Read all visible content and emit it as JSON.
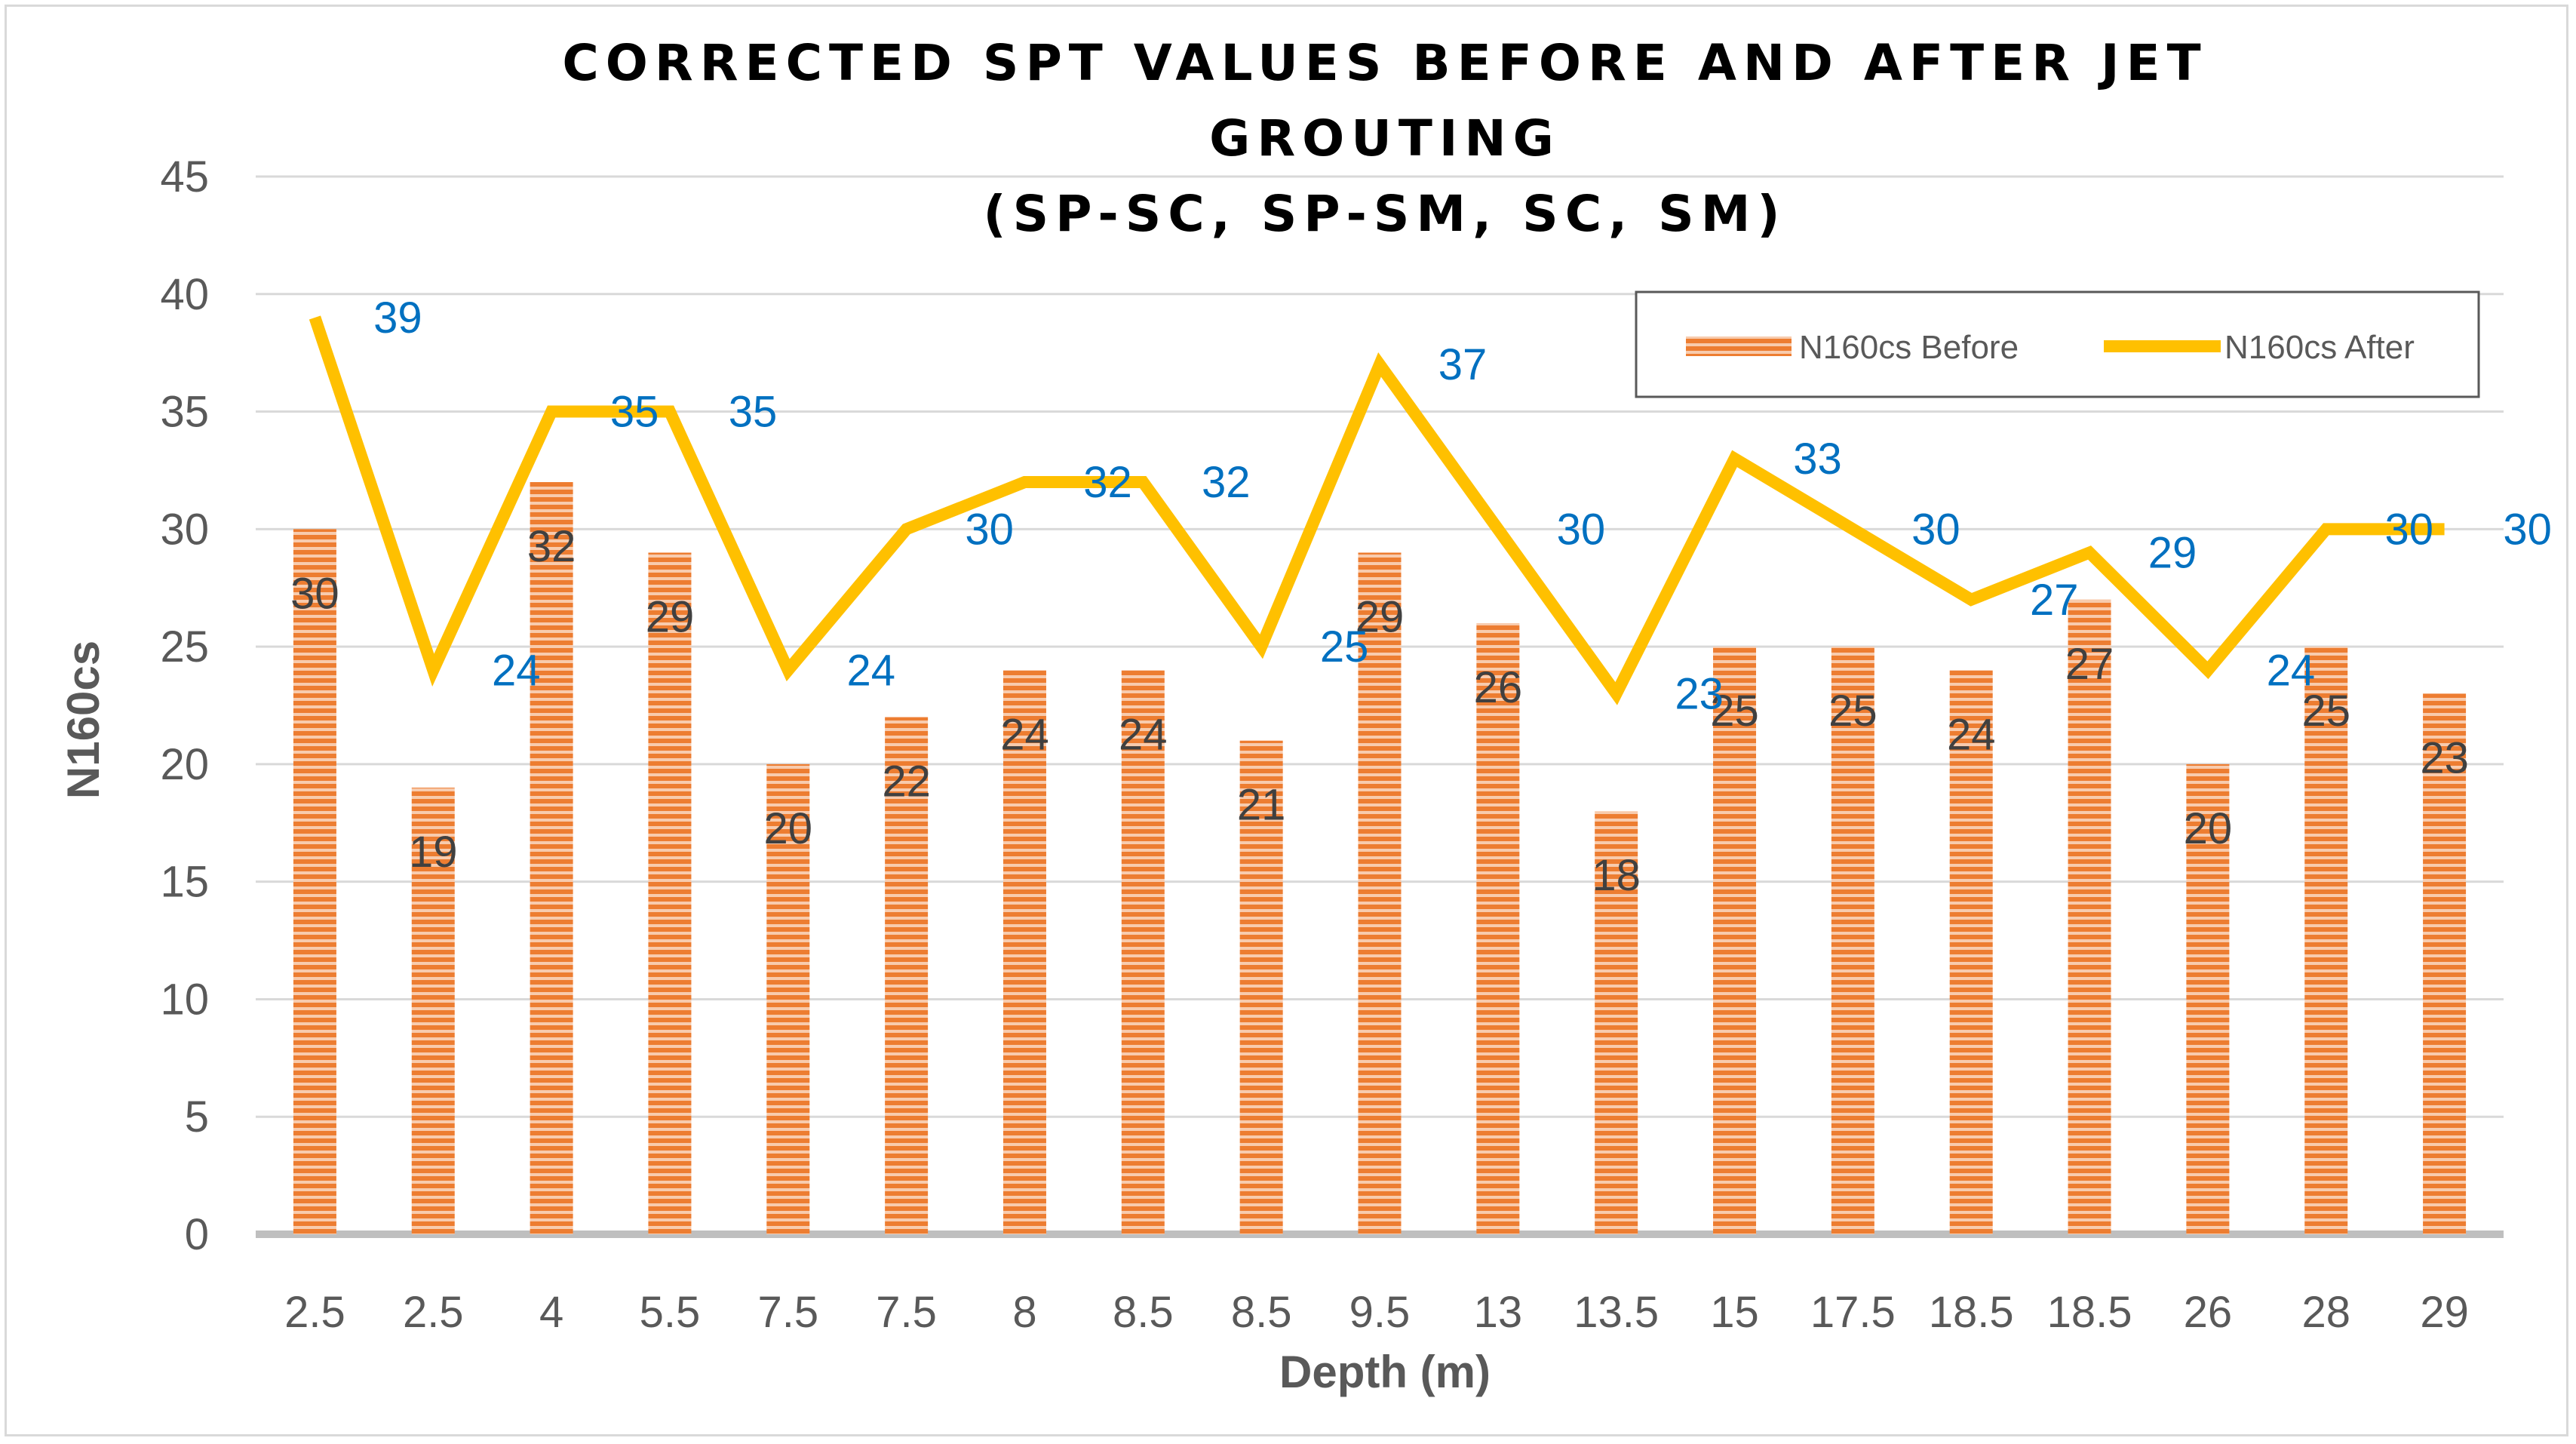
{
  "chart_data": {
    "type": "bar",
    "title": [
      "CORRECTED SPT VALUES BEFORE AND AFTER JET",
      "GROUTING",
      "(SP-SC, SP-SM, SC, SM)"
    ],
    "xlabel": "Depth (m)",
    "ylabel": "N160cs",
    "ylim": [
      0,
      45
    ],
    "yticks": [
      0,
      5,
      10,
      15,
      20,
      25,
      30,
      35,
      40,
      45
    ],
    "grid": true,
    "legend_position": "top-right",
    "categories": [
      "2.5",
      "2.5",
      "4",
      "5.5",
      "7.5",
      "7.5",
      "8",
      "8.5",
      "8.5",
      "9.5",
      "13",
      "13.5",
      "15",
      "17.5",
      "18.5",
      "18.5",
      "26",
      "28",
      "29"
    ],
    "series": [
      {
        "name": "N160cs Before",
        "type": "bar",
        "color": "#ed7d31",
        "values": [
          30,
          19,
          32,
          29,
          20,
          22,
          24,
          24,
          21,
          29,
          26,
          18,
          25,
          25,
          24,
          27,
          20,
          25,
          23
        ]
      },
      {
        "name": "N160cs After",
        "type": "line",
        "color": "#ffc000",
        "values": [
          39,
          24,
          35,
          35,
          24,
          30,
          32,
          32,
          25,
          37,
          30,
          23,
          33,
          30,
          27,
          29,
          24,
          30,
          30
        ]
      }
    ]
  }
}
